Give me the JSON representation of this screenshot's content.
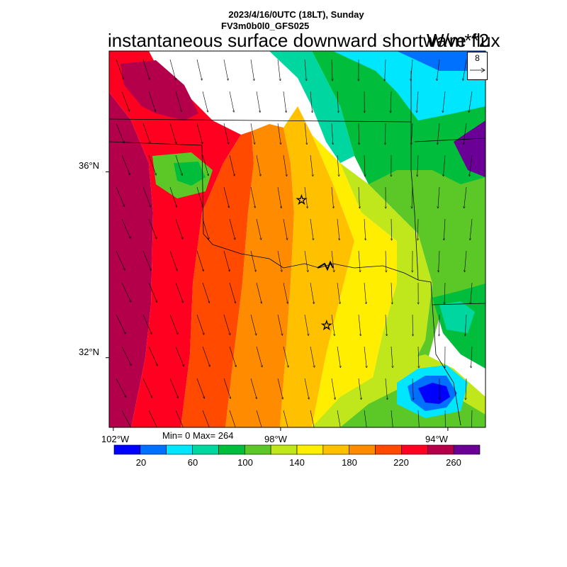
{
  "title": {
    "line1": "2023/4/16/0UTC (18LT), Sunday",
    "line2": "FV3m0b0l0_GFS025",
    "main": "instantaneous surface downward shortwave flux",
    "units": "W/m**2"
  },
  "vector_reference": {
    "label": "8"
  },
  "axes": {
    "lat_labels": [
      {
        "text": "36°N",
        "value": 36
      },
      {
        "text": "32°N",
        "value": 32
      }
    ],
    "lon_labels": [
      {
        "text": "102°W",
        "value": -102
      },
      {
        "text": "98°W",
        "value": -98
      },
      {
        "text": "94°W",
        "value": -94
      }
    ],
    "lon_range": [
      -102.1,
      -93.1
    ],
    "lat_range": [
      30.5,
      38.6
    ]
  },
  "stats": {
    "text": "Min= 0 Max= 264"
  },
  "colorbar": {
    "colors": [
      "#0000ff",
      "#0070ff",
      "#00e6ff",
      "#00d6a0",
      "#00be3c",
      "#5cc828",
      "#c0e61c",
      "#ffee00",
      "#ffc000",
      "#ff8c00",
      "#ff4a00",
      "#ff0020",
      "#b4004a",
      "#6a0096"
    ],
    "labels": [
      {
        "text": "20",
        "value": 20
      },
      {
        "text": "60",
        "value": 60
      },
      {
        "text": "100",
        "value": 100
      },
      {
        "text": "140",
        "value": 140
      },
      {
        "text": "180",
        "value": 180
      },
      {
        "text": "220",
        "value": 220
      },
      {
        "text": "260",
        "value": 260
      }
    ],
    "levels": [
      20,
      40,
      60,
      80,
      100,
      120,
      140,
      160,
      180,
      200,
      220,
      240,
      260
    ]
  },
  "markers": [
    {
      "name": "star-north",
      "lon": -97.5,
      "lat": 35.4
    },
    {
      "name": "star-south",
      "lon": -96.9,
      "lat": 32.7
    }
  ]
}
